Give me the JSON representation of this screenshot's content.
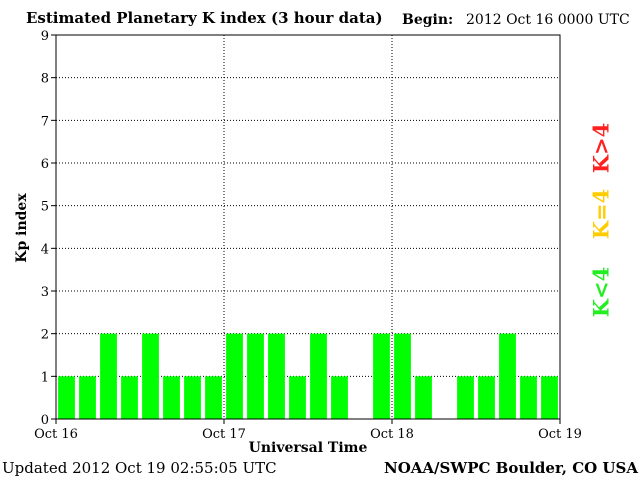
{
  "header": {
    "title": "Estimated Planetary K index (3 hour data)",
    "begin_label": "Begin:",
    "begin_value": "2012 Oct 16 0000 UTC"
  },
  "footer": {
    "updated": "Updated 2012 Oct 19 02:55:05 UTC",
    "credit": "NOAA/SWPC Boulder, CO USA"
  },
  "legend": {
    "high": "K>4",
    "equal": "K=4",
    "low": "K<4"
  },
  "colors": {
    "bar_low": "#00ff00",
    "equal": "#ffcc00",
    "high": "#ff2020",
    "grid": "#000000"
  },
  "chart_data": {
    "type": "bar",
    "title": "Estimated Planetary K index (3 hour data)",
    "xlabel": "Universal Time",
    "ylabel": "Kp index",
    "ylim": [
      0,
      9
    ],
    "yticks": [
      "0",
      "1",
      "2",
      "3",
      "4",
      "5",
      "6",
      "7",
      "8",
      "9"
    ],
    "xticks": [
      "Oct 16",
      "Oct 17",
      "Oct 18",
      "Oct 19"
    ],
    "grid": true,
    "legend_position": "right",
    "values": [
      1,
      1,
      2,
      1,
      2,
      1,
      1,
      1,
      2,
      2,
      2,
      1,
      2,
      1,
      0,
      2,
      2,
      1,
      0,
      1,
      1,
      2,
      1,
      1
    ]
  }
}
